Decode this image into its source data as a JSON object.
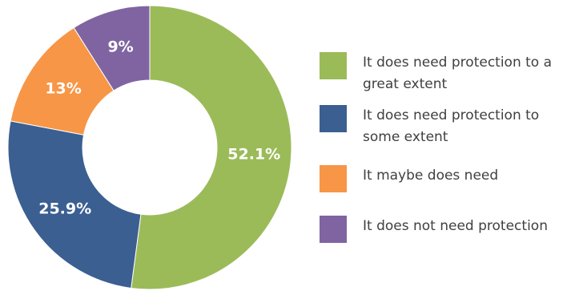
{
  "chart_data": {
    "type": "pie",
    "donut": true,
    "categories": [
      "It does need protection to a great extent",
      "It does need protection to some extent",
      "It maybe does need",
      "It does not need protection"
    ],
    "values": [
      52.1,
      25.9,
      13,
      9
    ],
    "labels": [
      "52.1%",
      "25.9%",
      "13%",
      "9%"
    ],
    "colors": [
      "#9bbb59",
      "#3b5f91",
      "#f79646",
      "#8064a2"
    ],
    "legend_position": "right",
    "start_angle_deg": 0,
    "direction": "clockwise"
  }
}
